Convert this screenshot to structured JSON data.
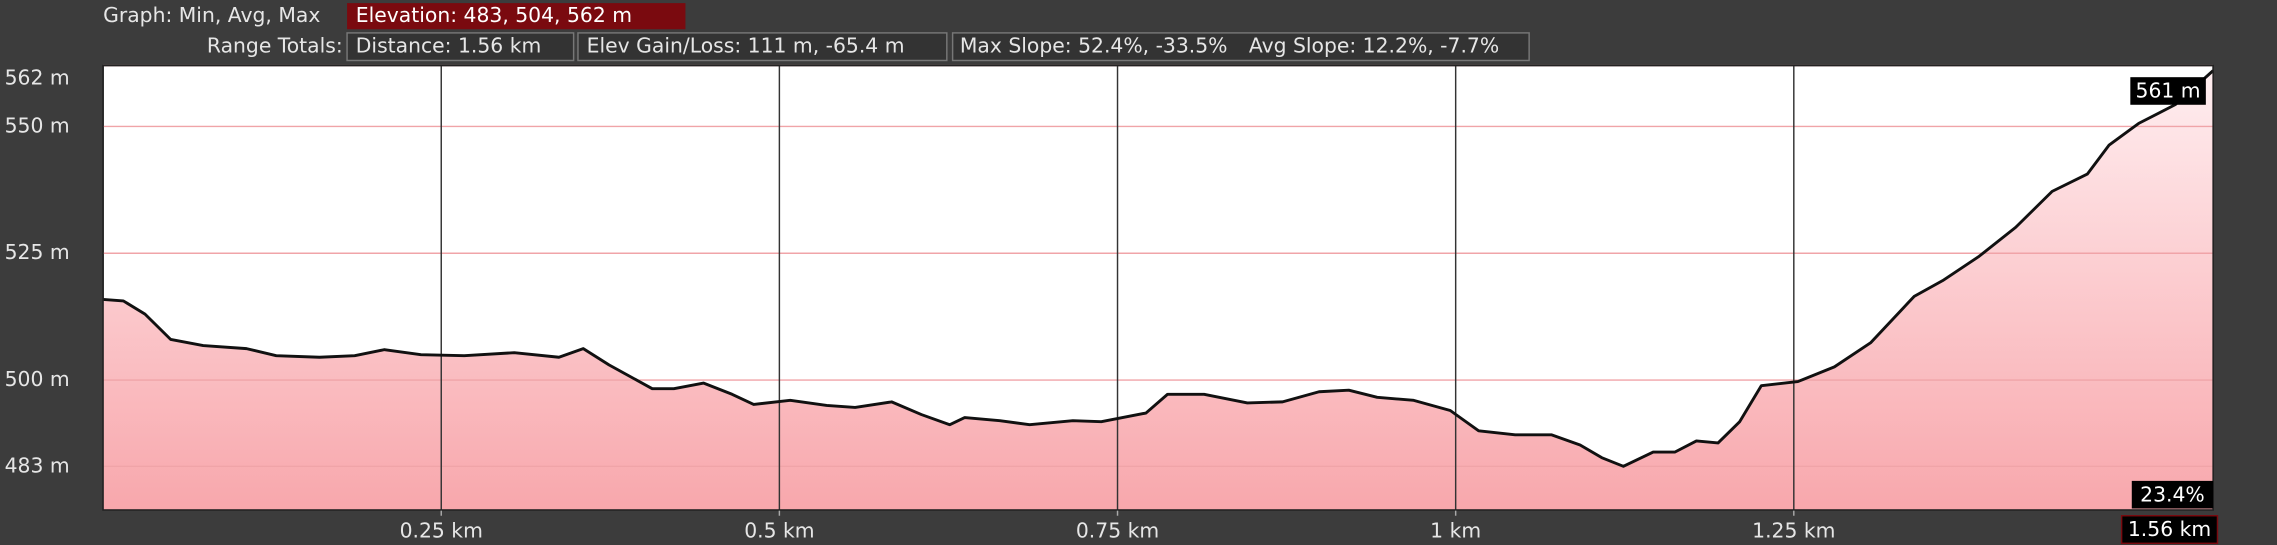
{
  "header": {
    "graph_label": "Graph: Min, Avg, Max",
    "elevation": "Elevation: 483, 504, 562 m",
    "range_label": "Range Totals:",
    "distance": "Distance: 1.56 km",
    "gain_loss": "Elev Gain/Loss: 111 m, -65.4 m",
    "max_slope": "Max Slope: 52.4%, -33.5%",
    "avg_slope": "Avg Slope: 12.2%, -7.7%"
  },
  "chart_data": {
    "type": "area",
    "x": [
      0,
      0.015,
      0.031,
      0.05,
      0.074,
      0.106,
      0.128,
      0.16,
      0.186,
      0.208,
      0.235,
      0.267,
      0.304,
      0.337,
      0.355,
      0.374,
      0.406,
      0.422,
      0.444,
      0.465,
      0.481,
      0.508,
      0.535,
      0.556,
      0.583,
      0.605,
      0.626,
      0.637,
      0.663,
      0.685,
      0.717,
      0.738,
      0.771,
      0.787,
      0.814,
      0.846,
      0.872,
      0.899,
      0.921,
      0.942,
      0.969,
      0.996,
      1.017,
      1.044,
      1.071,
      1.092,
      1.108,
      1.124,
      1.146,
      1.162,
      1.178,
      1.194,
      1.21,
      1.226,
      1.253,
      1.28,
      1.307,
      1.339,
      1.36,
      1.387,
      1.414,
      1.441,
      1.467,
      1.483,
      1.505,
      1.532,
      1.56
    ],
    "values": [
      515.9,
      515.6,
      513,
      508,
      506.8,
      506.2,
      504.8,
      504.5,
      504.8,
      506,
      505,
      504.8,
      505.4,
      504.5,
      506.2,
      503,
      498.3,
      498.3,
      499.4,
      497.2,
      495.2,
      496,
      495,
      494.6,
      495.7,
      493.2,
      491.2,
      492.6,
      492,
      491.2,
      492,
      491.8,
      493.5,
      497.2,
      497.2,
      495.5,
      495.7,
      497.7,
      498,
      496.6,
      496,
      494,
      490,
      489.2,
      489.2,
      487.2,
      484.7,
      483,
      485.8,
      485.8,
      488,
      487.6,
      491.8,
      498.9,
      499.7,
      502.6,
      507.4,
      516.5,
      519.6,
      524.4,
      530.1,
      537.2,
      540.6,
      546.3,
      550.6,
      554.3,
      561
    ],
    "color": "#111111",
    "fill_top": "#ffeef0",
    "fill_bottom": "#f8a7ac",
    "xlim": [
      0,
      1.56
    ],
    "ylim": [
      474.4,
      562
    ],
    "xticks": [
      {
        "value": 0.25,
        "label": "0.25 km"
      },
      {
        "value": 0.5,
        "label": "0.5 km"
      },
      {
        "value": 0.75,
        "label": "0.75 km"
      },
      {
        "value": 1,
        "label": "1 km"
      },
      {
        "value": 1.25,
        "label": "1.25 km"
      },
      {
        "value": 1.56,
        "label": "1.56 km"
      }
    ],
    "yticks": [
      {
        "value": 483,
        "label": "483 m"
      },
      {
        "value": 500,
        "label": "500 m"
      },
      {
        "value": 525,
        "label": "525 m"
      },
      {
        "value": 550,
        "label": "550 m"
      },
      {
        "value": 562,
        "label": "562 m"
      }
    ],
    "grid": true,
    "cursor": {
      "elevation": "561 m",
      "slope": "23.4%"
    }
  }
}
